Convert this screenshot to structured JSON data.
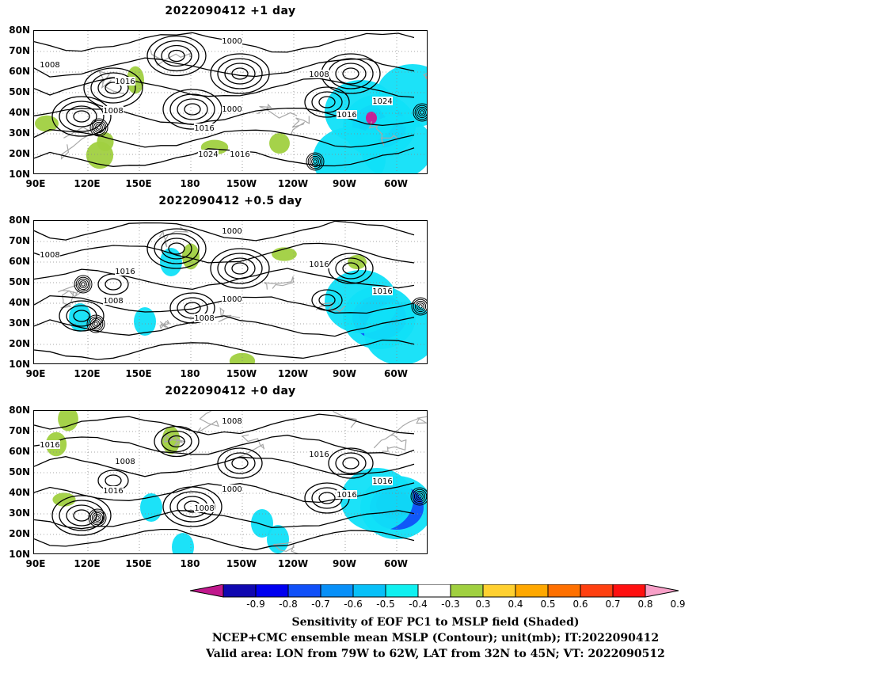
{
  "panels": [
    {
      "title": "2022090412  +1 day",
      "contour_labels": [
        "1008",
        "1000",
        "1008",
        "1016",
        "1000",
        "1016",
        "1024",
        "1008",
        "1016",
        "1024",
        "1016"
      ],
      "shading": {
        "green": [
          [
            125,
            195
          ],
          [
            132,
            178
          ],
          [
            270,
            185
          ],
          [
            352,
            180
          ],
          [
            58,
            155
          ],
          [
            170,
            100
          ]
        ],
        "blue": [
          [
            478,
            158
          ],
          [
            455,
            140
          ],
          [
            500,
            185
          ],
          [
            440,
            200
          ],
          [
            520,
            120
          ]
        ],
        "pink": [
          [
            468,
            148
          ]
        ]
      }
    },
    {
      "title": "2022090412  +0.5 day",
      "contour_labels": [
        "1008",
        "1000",
        "1016",
        "1016",
        "1000",
        "1008",
        "1016",
        "1008"
      ],
      "shading": {
        "green": [
          [
            240,
            323
          ],
          [
            358,
            320
          ],
          [
            450,
            330
          ],
          [
            305,
            455
          ]
        ],
        "blue": [
          [
            478,
            400
          ],
          [
            455,
            380
          ],
          [
            505,
            420
          ],
          [
            182,
            405
          ],
          [
            215,
            330
          ],
          [
            100,
            400
          ]
        ],
        "pink": []
      }
    },
    {
      "title": "2022090412  +0 day",
      "contour_labels": [
        "1016",
        "1008",
        "1016",
        "1008",
        "1000",
        "1008",
        "1016",
        "1016",
        "1016"
      ],
      "shading": {
        "green": [
          [
            85,
            528
          ],
          [
            70,
            560
          ],
          [
            80,
            630
          ],
          [
            215,
            555
          ]
        ],
        "blue": [
          [
            500,
            640
          ],
          [
            475,
            630
          ],
          [
            190,
            640
          ],
          [
            230,
            690
          ],
          [
            330,
            660
          ],
          [
            350,
            680
          ]
        ],
        "pink": []
      }
    }
  ],
  "lat_labels": [
    "80N",
    "70N",
    "60N",
    "50N",
    "40N",
    "30N",
    "20N",
    "10N"
  ],
  "lon_labels": [
    "90E",
    "120E",
    "150E",
    "180",
    "150W",
    "120W",
    "90W",
    "60W"
  ],
  "colorbar": {
    "ticks": [
      "-0.9",
      "-0.8",
      "-0.7",
      "-0.6",
      "-0.5",
      "-0.4",
      "-0.3",
      "0.3",
      "0.4",
      "0.5",
      "0.6",
      "0.7",
      "0.8",
      "0.9"
    ],
    "colors": [
      "#c0188c",
      "#1008b0",
      "#0000f0",
      "#1050f8",
      "#0890f8",
      "#08c0f8",
      "#10f0f0",
      "#ffffff",
      "#a0d040",
      "#ffd030",
      "#ffa800",
      "#ff7000",
      "#ff4010",
      "#ff1010",
      "#f8a0c8"
    ]
  },
  "captions": {
    "line1": "Sensitivity of EOF PC1 to MSLP field (Shaded)",
    "line2": "NCEP+CMC ensemble mean MSLP (Contour); unit(mb); IT:2022090412",
    "line3": "Valid area: LON from 79W to 62W, LAT from 32N to 45N; VT: 2022090512"
  }
}
